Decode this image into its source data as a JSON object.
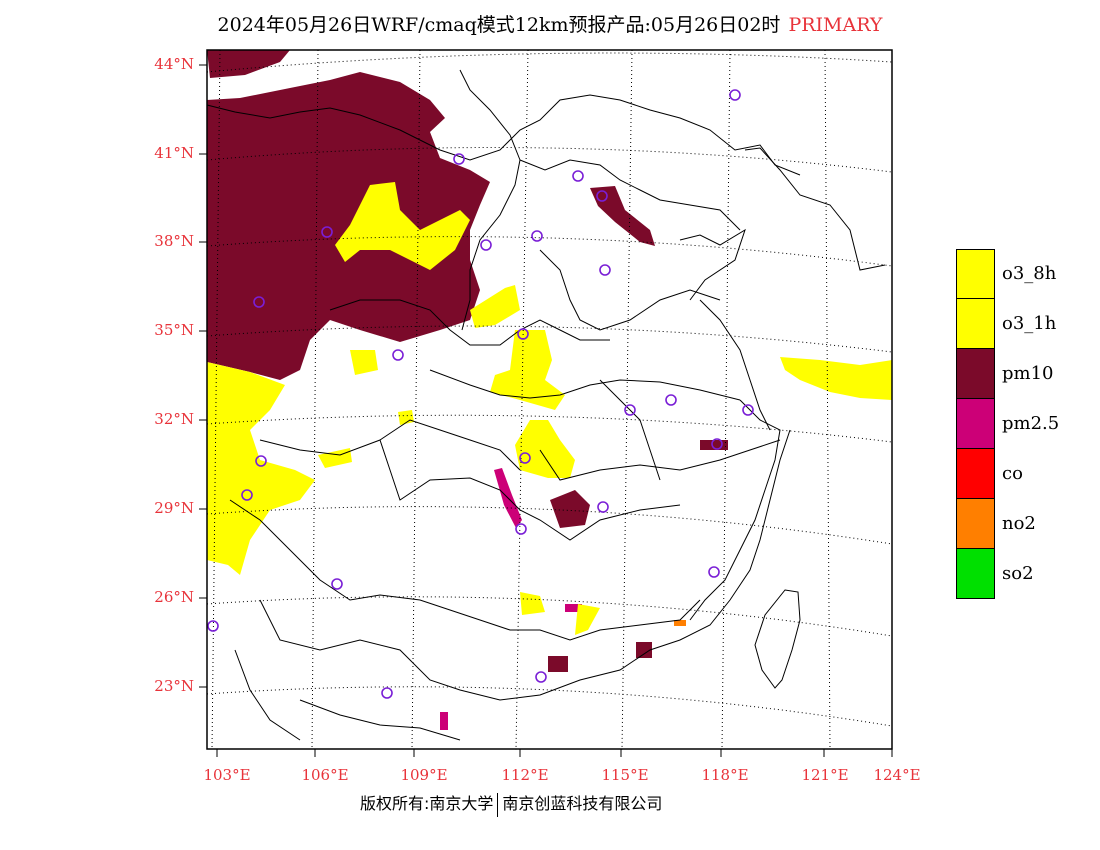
{
  "title": {
    "main": "2024年05月26日WRF/cmaq模式12km预报产品:05月26日02时",
    "tag": "PRIMARY"
  },
  "map": {
    "lat_labels": [
      "44°N",
      "41°N",
      "38°N",
      "35°N",
      "32°N",
      "29°N",
      "26°N",
      "23°N"
    ],
    "lon_labels": [
      "103°E",
      "106°E",
      "109°E",
      "112°E",
      "115°E",
      "118°E",
      "121°E",
      "124°E"
    ],
    "station_marker_icon": "circle-outline-icon",
    "station_color": "#7a1fd6",
    "boundary_color": "#000000"
  },
  "legend": [
    {
      "label": "o3_8h",
      "color": "#ffff00"
    },
    {
      "label": "o3_1h",
      "color": "#ffff00"
    },
    {
      "label": "pm10",
      "color": "#7b0a2a"
    },
    {
      "label": "pm2.5",
      "color": "#cc0077"
    },
    {
      "label": "co",
      "color": "#ff0000"
    },
    {
      "label": "no2",
      "color": "#ff7f00"
    },
    {
      "label": "so2",
      "color": "#00e000"
    }
  ],
  "footer": {
    "left": "版权所有:南京大学",
    "right": "南京创蓝科技有限公司"
  }
}
